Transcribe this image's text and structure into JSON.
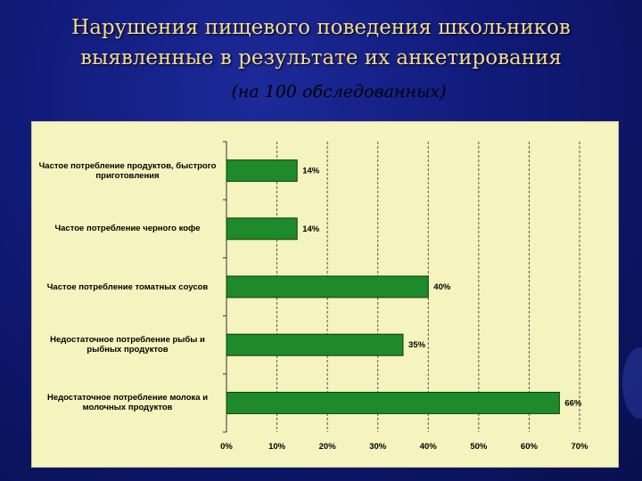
{
  "slide": {
    "title_line1": "Нарушения пищевого поведения школьников",
    "title_line2": "выявленные в результате их анкетирования",
    "subtitle": "(на 100 обследованных)"
  },
  "colors": {
    "background": "#101a78",
    "title": "#f2d998",
    "panel": "#f5f3be",
    "bar": "#1f8a2a"
  },
  "chart_data": {
    "type": "bar",
    "orientation": "horizontal",
    "categories": [
      "Частое потребление продуктов, быстрого приготовления",
      "Частое потребление черного кофе",
      "Частое потребление томатных соусов",
      "Недостаточное потребление рыбы и рыбных продуктов",
      "Недостаточное потребление молока и  молочных продуктов"
    ],
    "values": [
      14,
      14,
      40,
      35,
      66
    ],
    "value_labels": [
      "14%",
      "14%",
      "40%",
      "35%",
      "66%"
    ],
    "xlim": [
      0,
      70
    ],
    "xticks": [
      0,
      10,
      20,
      30,
      40,
      50,
      60,
      70
    ],
    "xtick_labels": [
      "0%",
      "10%",
      "20%",
      "30%",
      "40%",
      "50%",
      "60%",
      "70%"
    ],
    "grid": "vertical dashed"
  }
}
